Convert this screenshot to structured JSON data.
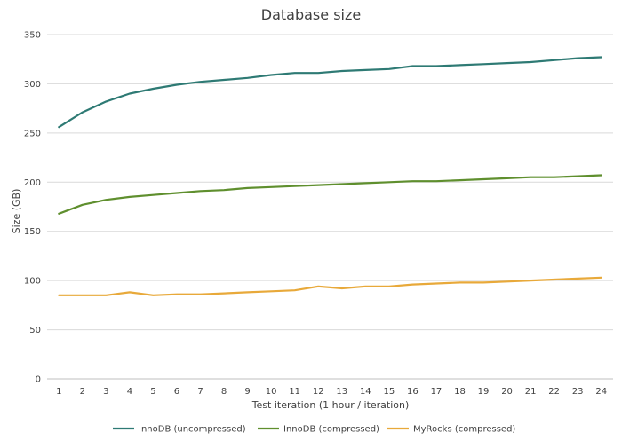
{
  "chart_data": {
    "type": "line",
    "title": "Database size",
    "xlabel": "Test iteration (1 hour / iteration)",
    "ylabel": "Size (GB)",
    "ylim": [
      0,
      350
    ],
    "yticks": [
      0,
      50,
      100,
      150,
      200,
      250,
      300,
      350
    ],
    "grid": true,
    "legend_position": "bottom",
    "categories": [
      "1",
      "2",
      "3",
      "4",
      "5",
      "6",
      "7",
      "8",
      "9",
      "10",
      "11",
      "12",
      "13",
      "14",
      "15",
      "16",
      "17",
      "18",
      "19",
      "20",
      "21",
      "22",
      "23",
      "24"
    ],
    "series": [
      {
        "name": "InnoDB (uncompressed)",
        "color": "#2e7a74",
        "values": [
          256,
          271,
          282,
          290,
          295,
          299,
          302,
          304,
          306,
          309,
          311,
          311,
          313,
          314,
          315,
          318,
          318,
          319,
          320,
          321,
          322,
          324,
          326,
          327
        ]
      },
      {
        "name": "InnoDB (compressed)",
        "color": "#5f8f2e",
        "values": [
          168,
          177,
          182,
          185,
          187,
          189,
          191,
          192,
          194,
          195,
          196,
          197,
          198,
          199,
          200,
          201,
          201,
          202,
          203,
          204,
          205,
          205,
          206,
          207
        ]
      },
      {
        "name": "MyRocks (compressed)",
        "color": "#e8a93a",
        "values": [
          85,
          85,
          85,
          88,
          85,
          86,
          86,
          87,
          88,
          89,
          90,
          94,
          92,
          94,
          94,
          96,
          97,
          98,
          98,
          99,
          100,
          101,
          102,
          103
        ]
      }
    ]
  }
}
